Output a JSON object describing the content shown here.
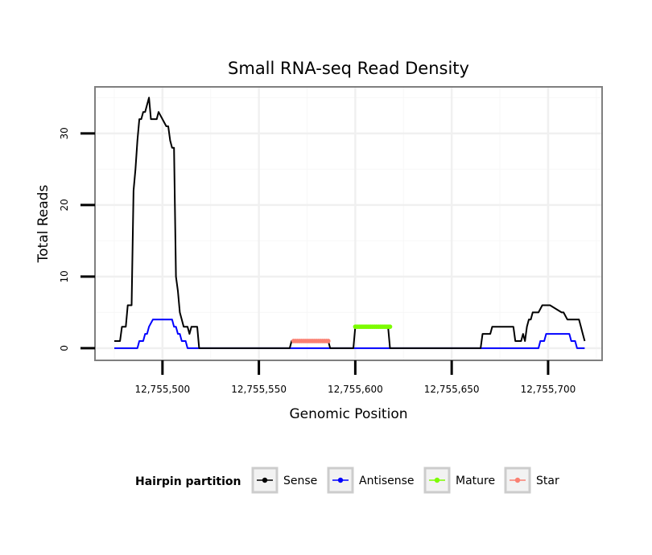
{
  "chart_data": {
    "type": "line",
    "title": "Small RNA-seq Read Density",
    "xlabel": "Genomic Position",
    "ylabel": "Total Reads",
    "xlim": [
      12755465,
      12755728
    ],
    "ylim": [
      -1.7,
      36.5
    ],
    "x_ticks": [
      12755500,
      12755550,
      12755600,
      12755650,
      12755700
    ],
    "x_tick_labels": [
      "12,755,500",
      "12,755,550",
      "12,755,600",
      "12,755,650",
      "12,755,700"
    ],
    "y_ticks": [
      0,
      10,
      20,
      30
    ],
    "y_tick_labels": [
      "0",
      "10",
      "20",
      "30"
    ],
    "grid": true,
    "legend": {
      "title": "Hairpin partition",
      "position": "bottom",
      "entries": [
        {
          "label": "Sense",
          "color": "#000000"
        },
        {
          "label": "Antisense",
          "color": "#0000ff"
        },
        {
          "label": "Mature",
          "color": "#7cfc00"
        },
        {
          "label": "Star",
          "color": "#fa8072"
        }
      ]
    },
    "series": [
      {
        "name": "Sense",
        "color": "#000000",
        "x": [
          12755475,
          12755478,
          12755479,
          12755481,
          12755482,
          12755484,
          12755485,
          12755486,
          12755487,
          12755488,
          12755489,
          12755490,
          12755491,
          12755492,
          12755493,
          12755494,
          12755495,
          12755496,
          12755497,
          12755498,
          12755502,
          12755503,
          12755504,
          12755505,
          12755506,
          12755507,
          12755508,
          12755509,
          12755510,
          12755511,
          12755512,
          12755513,
          12755514,
          12755515,
          12755516,
          12755518,
          12755519,
          12755522,
          12755523,
          12755525,
          12755566,
          12755567,
          12755586,
          12755587,
          12755599,
          12755600,
          12755617,
          12755618,
          12755665,
          12755666,
          12755670,
          12755671,
          12755682,
          12755683,
          12755686,
          12755687,
          12755688,
          12755689,
          12755690,
          12755691,
          12755692,
          12755693,
          12755694,
          12755695,
          12755697,
          12755698,
          12755699,
          12755700,
          12755701,
          12755707,
          12755708,
          12755710,
          12755711,
          12755716,
          12755717,
          12755718,
          12755719
        ],
        "values": [
          1,
          1,
          3,
          3,
          6,
          6,
          22,
          25,
          29,
          32,
          32,
          33,
          33,
          34,
          35,
          32,
          32,
          32,
          32,
          33,
          31,
          31,
          29,
          28,
          28,
          10,
          8,
          5,
          4,
          3,
          3,
          3,
          2,
          3,
          3,
          3,
          0,
          0,
          0,
          0,
          0,
          1,
          1,
          0,
          0,
          3,
          3,
          0,
          0,
          2,
          2,
          3,
          3,
          1,
          1,
          2,
          1,
          3,
          4,
          4,
          5,
          5,
          5,
          5,
          6,
          6,
          6,
          6,
          6,
          5,
          5,
          4,
          4,
          4,
          3,
          2,
          1
        ]
      },
      {
        "name": "Antisense",
        "color": "#0000ff",
        "x": [
          12755475,
          12755487,
          12755488,
          12755490,
          12755491,
          12755492,
          12755493,
          12755495,
          12755504,
          12755505,
          12755506,
          12755507,
          12755508,
          12755509,
          12755510,
          12755512,
          12755513,
          12755695,
          12755696,
          12755697,
          12755698,
          12755699,
          12755700,
          12755711,
          12755712,
          12755714,
          12755715,
          12755719
        ],
        "values": [
          0,
          0,
          1,
          1,
          2,
          2,
          3,
          4,
          4,
          4,
          3,
          3,
          2,
          2,
          1,
          1,
          0,
          0,
          1,
          1,
          1,
          2,
          2,
          2,
          1,
          1,
          0,
          0
        ]
      },
      {
        "name": "Mature",
        "color": "#7cfc00",
        "x": [
          12755600,
          12755618
        ],
        "values": [
          3,
          3
        ]
      },
      {
        "name": "Star",
        "color": "#fa8072",
        "x": [
          12755568,
          12755586
        ],
        "values": [
          1,
          1
        ]
      }
    ]
  }
}
